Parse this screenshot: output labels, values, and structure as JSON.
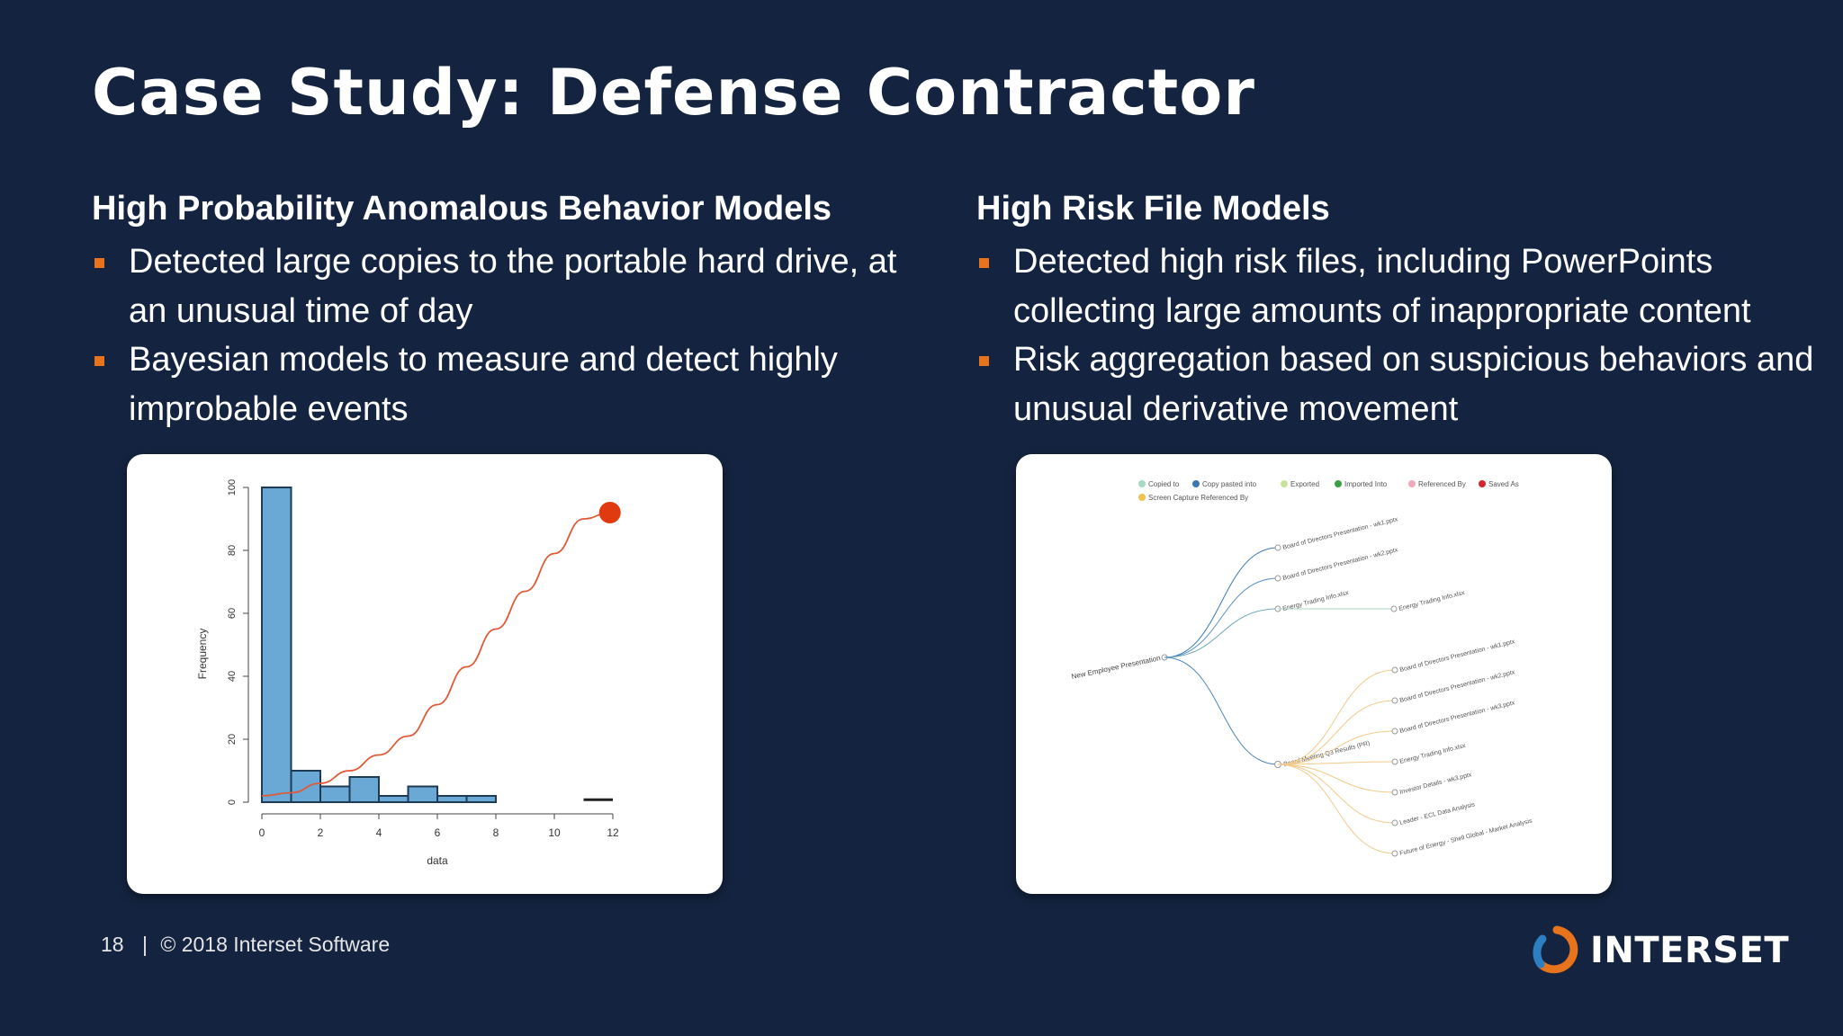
{
  "slide": {
    "title": "Case Study: Defense Contractor"
  },
  "left_column": {
    "heading": "High Probability Anomalous Behavior Models",
    "bullets": [
      "Detected large copies to the portable hard drive, at an unusual time of day",
      "Bayesian models to measure and detect highly improbable events"
    ]
  },
  "right_column": {
    "heading": "High Risk File Models",
    "bullets": [
      "Detected high risk files, including PowerPoints collecting large amounts of inappropriate content",
      "Risk aggregation based on suspicious behaviors and unusual derivative movement"
    ]
  },
  "colors": {
    "background": "#142440",
    "bullet": "#e8731d",
    "histogram_bar": "#6aa8d6",
    "curve": "#e05a36",
    "highlight_point": "#e03a10"
  },
  "histogram_chart": {
    "chart_data": {
      "type": "bar",
      "xlabel": "data",
      "ylabel": "Frequency",
      "xlim": [
        0,
        12
      ],
      "ylim": [
        0,
        100
      ],
      "xticks": [
        "0",
        "2",
        "4",
        "6",
        "8",
        "10",
        "12"
      ],
      "yticks": [
        "0",
        "20",
        "40",
        "60",
        "80",
        "100"
      ],
      "bins": [
        {
          "x0": 0,
          "x1": 1,
          "value": 100
        },
        {
          "x0": 1,
          "x1": 2,
          "value": 10
        },
        {
          "x0": 2,
          "x1": 3,
          "value": 5
        },
        {
          "x0": 3,
          "x1": 4,
          "value": 8
        },
        {
          "x0": 4,
          "x1": 5,
          "value": 2
        },
        {
          "x0": 5,
          "x1": 6,
          "value": 5
        },
        {
          "x0": 6,
          "x1": 7,
          "value": 2
        },
        {
          "x0": 7,
          "x1": 8,
          "value": 2
        },
        {
          "x0": 11,
          "x1": 12,
          "value": 0.5
        }
      ],
      "curve": [
        {
          "x": 0,
          "y": 2
        },
        {
          "x": 1,
          "y": 3
        },
        {
          "x": 2,
          "y": 6
        },
        {
          "x": 3,
          "y": 10
        },
        {
          "x": 4,
          "y": 15
        },
        {
          "x": 5,
          "y": 21
        },
        {
          "x": 6,
          "y": 31
        },
        {
          "x": 7,
          "y": 43
        },
        {
          "x": 8,
          "y": 55
        },
        {
          "x": 9,
          "y": 67
        },
        {
          "x": 10,
          "y": 79
        },
        {
          "x": 11,
          "y": 90
        },
        {
          "x": 11.9,
          "y": 92
        }
      ],
      "highlight_point": {
        "x": 11.9,
        "y": 92
      }
    }
  },
  "lineage_graph": {
    "legend": [
      {
        "label": "Copied to",
        "color": "#a6d9c2"
      },
      {
        "label": "Copy pasted into",
        "color": "#3a78b5"
      },
      {
        "label": "Exported",
        "color": "#c8e49a"
      },
      {
        "label": "Imported Into",
        "color": "#3aa043"
      },
      {
        "label": "Referenced By",
        "color": "#f2a8b8"
      },
      {
        "label": "Saved As",
        "color": "#d9242c"
      },
      {
        "label": "Screen Capture Referenced By",
        "color": "#f2c14e"
      }
    ],
    "root": "New Employee Presentation",
    "upper_branch": [
      "Board of Directors Presentation - wk1.pptx",
      "Board of Directors Presentation - wk2.pptx",
      "Energy Trading Info.xlsx"
    ],
    "upper_leaf": "Energy Trading Info.xlsx",
    "hub": "Board Meeting Q3 Results (PR)",
    "lower_leaves": [
      "Board of Directors Presentation - wk1.pptx",
      "Board of Directors Presentation - wk2.pptx",
      "Board of Directors Presentation - wk3.pptx",
      "Energy Trading Info.xlsx",
      "Investor Details - wk3.pptx",
      "Leader - ECL Data Analysis",
      "Future of Energy - Shell Global - Market Analysis"
    ]
  },
  "footer": {
    "page_number": "18",
    "copyright": "© 2018 Interset Software",
    "separator": "|"
  },
  "logo": {
    "brand": "INTERSET"
  }
}
